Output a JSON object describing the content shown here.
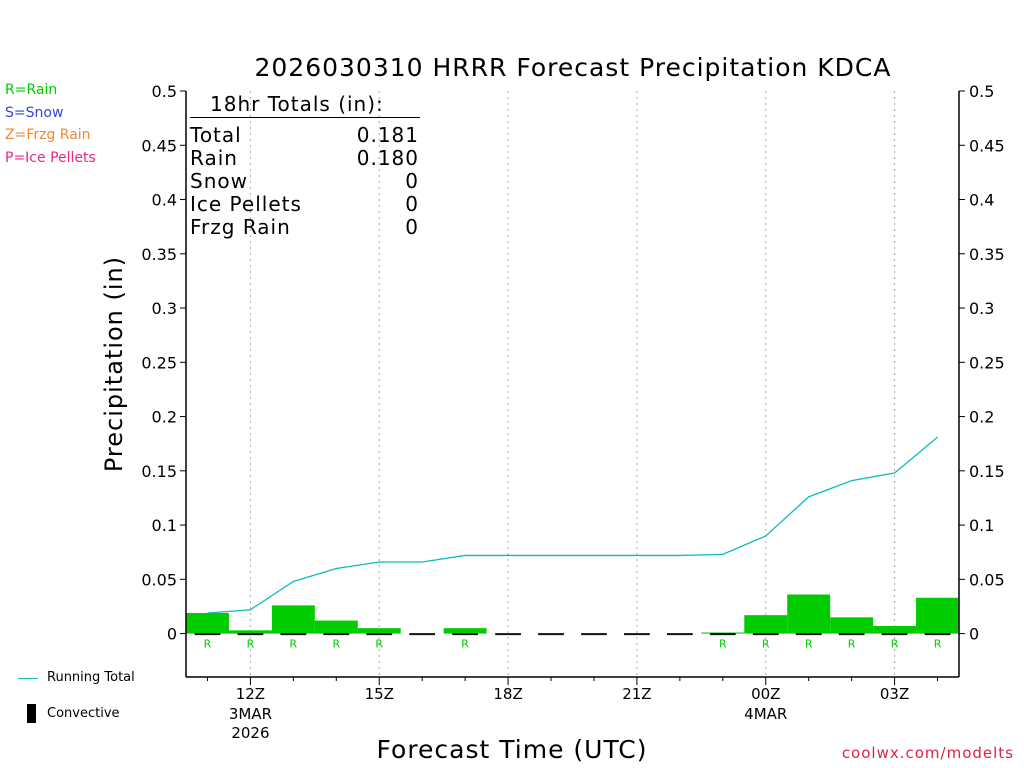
{
  "colors": {
    "rain": "#00cc00",
    "snow": "#3344dd",
    "frzg_rain": "#ee8833",
    "ice_pellets": "#ee2288",
    "running_total": "#11bbbb",
    "convective": "#000000",
    "watermark": "#e0204a"
  },
  "legend": {
    "rain": "R=Rain",
    "snow": "S=Snow",
    "frzg_rain": "Z=Frzg Rain",
    "ice_pellets": "P=Ice Pellets"
  },
  "totals": {
    "header": "18hr Totals (in):",
    "rows": [
      {
        "label": "Total",
        "value": "0.181"
      },
      {
        "label": "Rain",
        "value": "0.180"
      },
      {
        "label": "Snow",
        "value": "0"
      },
      {
        "label": "Ice Pellets",
        "value": "0"
      },
      {
        "label": "Frzg Rain",
        "value": "0"
      }
    ]
  },
  "bottom_legend": {
    "running_total": "Running Total",
    "convective": "Convective"
  },
  "watermark": "coolwx.com/modelts",
  "chart_data": {
    "type": "bar",
    "title": "2026030310 HRRR Forecast Precipitation KDCA",
    "xlabel": "Forecast Time (UTC)",
    "ylabel": "Precipitation (in)",
    "ylim": [
      -0.04,
      0.5
    ],
    "xlim": [
      10.5,
      28.5
    ],
    "yticks": [
      0,
      0.05,
      0.1,
      0.15,
      0.2,
      0.25,
      0.3,
      0.35,
      0.4,
      0.45,
      0.5
    ],
    "ytick_labels": [
      "0",
      "0.05",
      "0.1",
      "0.15",
      "0.2",
      "0.25",
      "0.3",
      "0.35",
      "0.4",
      "0.45",
      "0.5"
    ],
    "xticks": [
      {
        "x": 12,
        "label": "12Z",
        "sub": [
          "3MAR",
          "2026"
        ]
      },
      {
        "x": 15,
        "label": "15Z",
        "sub": []
      },
      {
        "x": 18,
        "label": "18Z",
        "sub": []
      },
      {
        "x": 21,
        "label": "21Z",
        "sub": []
      },
      {
        "x": 24,
        "label": "00Z",
        "sub": [
          "4MAR"
        ]
      },
      {
        "x": 27,
        "label": "03Z",
        "sub": []
      }
    ],
    "hours": [
      11,
      12,
      13,
      14,
      15,
      16,
      17,
      18,
      19,
      20,
      21,
      22,
      23,
      24,
      25,
      26,
      27,
      28
    ],
    "series": [
      {
        "name": "Hourly Rain",
        "values": [
          0.019,
          0.003,
          0.026,
          0.012,
          0.005,
          0.0,
          0.005,
          0.0,
          0.0,
          0.0,
          0.0,
          0.0,
          0.001,
          0.017,
          0.036,
          0.015,
          0.007,
          0.033
        ]
      },
      {
        "name": "Running Total",
        "values": [
          0.019,
          0.022,
          0.048,
          0.06,
          0.066,
          0.066,
          0.072,
          0.072,
          0.072,
          0.072,
          0.072,
          0.072,
          0.073,
          0.09,
          0.126,
          0.141,
          0.148,
          0.181
        ]
      }
    ],
    "ptype_markers": [
      {
        "x": 11,
        "label": "R"
      },
      {
        "x": 12,
        "label": "R"
      },
      {
        "x": 13,
        "label": "R"
      },
      {
        "x": 14,
        "label": "R"
      },
      {
        "x": 15,
        "label": "R"
      },
      {
        "x": 17,
        "label": "R"
      },
      {
        "x": 23,
        "label": "R"
      },
      {
        "x": 24,
        "label": "R"
      },
      {
        "x": 25,
        "label": "R"
      },
      {
        "x": 26,
        "label": "R"
      },
      {
        "x": 27,
        "label": "R"
      },
      {
        "x": 28,
        "label": "R"
      }
    ]
  }
}
